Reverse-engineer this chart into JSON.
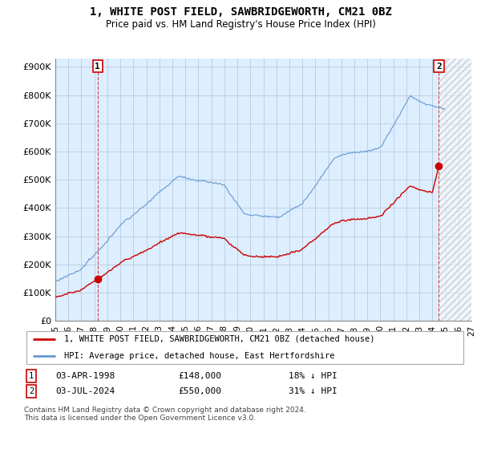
{
  "title": "1, WHITE POST FIELD, SAWBRIDGEWORTH, CM21 0BZ",
  "subtitle": "Price paid vs. HM Land Registry's House Price Index (HPI)",
  "line1_label": "1, WHITE POST FIELD, SAWBRIDGEWORTH, CM21 0BZ (detached house)",
  "line2_label": "HPI: Average price, detached house, East Hertfordshire",
  "line1_color": "#cc0000",
  "line2_color": "#6699cc",
  "sale1_date": "03-APR-1998",
  "sale1_price": 148000,
  "sale1_note": "18% ↓ HPI",
  "sale1_year": 1998.25,
  "sale2_date": "03-JUL-2024",
  "sale2_price": 550000,
  "sale2_note": "31% ↓ HPI",
  "sale2_year": 2024.5,
  "ylim": [
    0,
    930000
  ],
  "yticks": [
    0,
    100000,
    200000,
    300000,
    400000,
    500000,
    600000,
    700000,
    800000,
    900000
  ],
  "ytick_labels": [
    "£0",
    "£100K",
    "£200K",
    "£300K",
    "£400K",
    "£500K",
    "£600K",
    "£700K",
    "£800K",
    "£900K"
  ],
  "footer": "Contains HM Land Registry data © Crown copyright and database right 2024.\nThis data is licensed under the Open Government Licence v3.0.",
  "plot_bg": "#ddeeff",
  "grid_color": "#aabbcc",
  "xlim_start": 1995,
  "xlim_end": 2027,
  "xtick_years": [
    1995,
    1996,
    1997,
    1998,
    1999,
    2000,
    2001,
    2002,
    2003,
    2004,
    2005,
    2006,
    2007,
    2008,
    2009,
    2010,
    2011,
    2012,
    2013,
    2014,
    2015,
    2016,
    2017,
    2018,
    2019,
    2020,
    2021,
    2022,
    2023,
    2024,
    2025,
    2026,
    2027
  ]
}
